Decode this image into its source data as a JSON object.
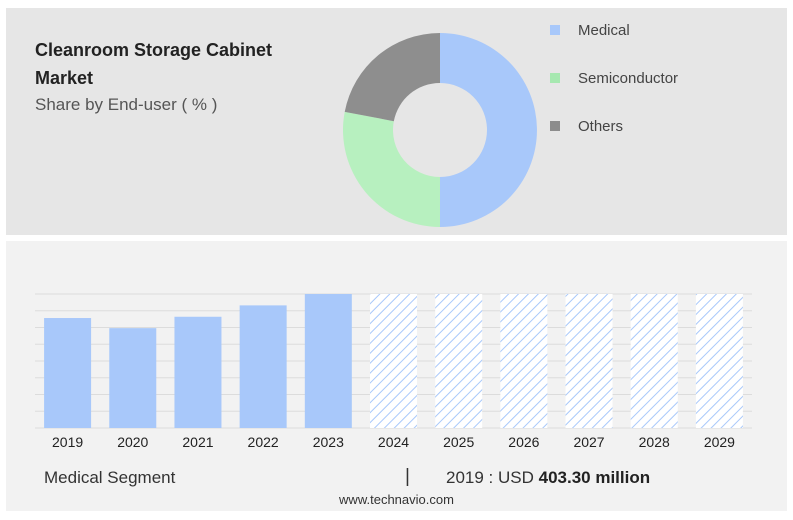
{
  "header": {
    "title": "Cleanroom Storage Cabinet Market",
    "subtitle": "Share by End-user ( % )"
  },
  "legend": [
    {
      "label": "Medical",
      "color": "#a8c8fa"
    },
    {
      "label": "Semiconductor",
      "color": "#a6e8b0"
    },
    {
      "label": "Others",
      "color": "#8c8c8c"
    }
  ],
  "chart_data": [
    {
      "type": "pie",
      "variant": "donut",
      "slices": [
        {
          "label": "Medical",
          "value": 50,
          "color": "#a8c8fa"
        },
        {
          "label": "Semiconductor",
          "value": 28,
          "color": "#b7f0bf"
        },
        {
          "label": "Others",
          "value": 22,
          "color": "#8e8e8e"
        }
      ]
    },
    {
      "type": "bar",
      "categories": [
        "2019",
        "2020",
        "2021",
        "2022",
        "2023",
        "2024",
        "2025",
        "2026",
        "2027",
        "2028",
        "2029"
      ],
      "values": [
        87,
        79,
        88,
        97,
        106,
        null,
        null,
        null,
        null,
        null,
        null
      ],
      "forecast_categories": [
        "2024",
        "2025",
        "2026",
        "2027",
        "2028",
        "2029"
      ],
      "bar_color": "#a8c8fa",
      "ylim": [
        0,
        106
      ],
      "grid": true
    }
  ],
  "footer": {
    "segment_label": "Medical Segment",
    "separator": "|",
    "value_prefix": "2019 : USD",
    "value_bold": "403.30 million",
    "site": "www.technavio.com"
  }
}
